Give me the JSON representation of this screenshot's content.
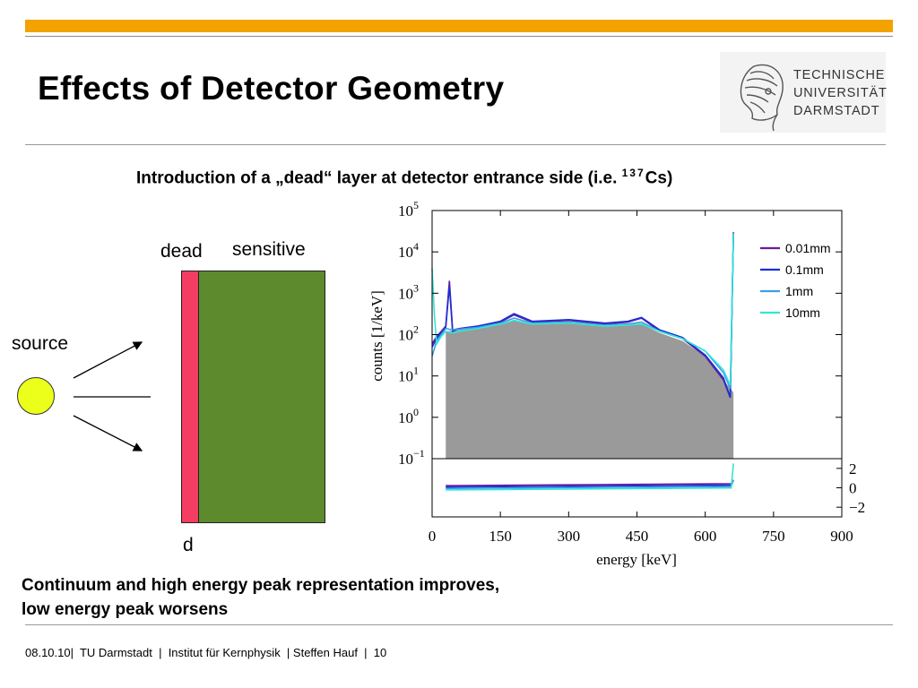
{
  "slide": {
    "title": "Effects of Detector Geometry",
    "subtitle_main": "Introduction of a „dead“ layer at detector entrance side (i.e. ",
    "subtitle_sup": "137",
    "subtitle_end": "Cs)",
    "conclusion_line1": "Continuum and high energy peak representation improves,",
    "conclusion_line2": "low energy peak worsens",
    "footer": "08.10.10|  TU Darmstadt  |  Institut für Kernphysik  | Steffen Hauf  |  10"
  },
  "logo": {
    "line1": "TECHNISCHE",
    "line2": "UNIVERSITÄT",
    "line3": "DARMSTADT"
  },
  "diagram": {
    "dead_label": "dead",
    "sensitive_label": "sensitive",
    "source_label": "source",
    "thickness_label": "d"
  },
  "colors": {
    "accent_bar": "#f2a300",
    "dead_layer": "#f53c62",
    "sensitive_layer": "#5c8a2d",
    "source": "#ecff1a"
  },
  "chart_data": {
    "type": "line",
    "title": "",
    "xlabel": "energy [keV]",
    "ylabel": "counts [1/keV]",
    "log_y": true,
    "xlim": [
      0,
      900
    ],
    "ylim": [
      0.1,
      100000
    ],
    "x_ticks": [
      0,
      150,
      300,
      450,
      600,
      750,
      900
    ],
    "y_ticks": [
      {
        "exp": -1,
        "label": "10",
        "sup": "−1"
      },
      {
        "exp": 0,
        "label": "10",
        "sup": "0"
      },
      {
        "exp": 1,
        "label": "10",
        "sup": "1"
      },
      {
        "exp": 2,
        "label": "10",
        "sup": "2"
      },
      {
        "exp": 3,
        "label": "10",
        "sup": "3"
      },
      {
        "exp": 4,
        "label": "10",
        "sup": "4"
      },
      {
        "exp": 5,
        "label": "10",
        "sup": "5"
      }
    ],
    "reference_fill": {
      "x": [
        30,
        60,
        100,
        150,
        180,
        220,
        300,
        380,
        430,
        460,
        500,
        550,
        600,
        640,
        662
      ],
      "y": [
        120,
        130,
        150,
        180,
        230,
        180,
        190,
        160,
        170,
        180,
        110,
        70,
        30,
        8,
        4
      ]
    },
    "series": [
      {
        "name": "0.01mm",
        "color": "#6a1b9a",
        "x": [
          0,
          10,
          20,
          30,
          38,
          45,
          60,
          100,
          150,
          180,
          220,
          300,
          380,
          430,
          460,
          500,
          550,
          600,
          640,
          655,
          662
        ],
        "y": [
          60,
          90,
          120,
          160,
          2000,
          130,
          140,
          160,
          200,
          300,
          200,
          220,
          180,
          200,
          250,
          120,
          80,
          30,
          8,
          3,
          30000
        ]
      },
      {
        "name": "0.1mm",
        "color": "#1a2fd6",
        "x": [
          0,
          10,
          20,
          30,
          38,
          45,
          60,
          100,
          150,
          180,
          220,
          300,
          380,
          430,
          460,
          500,
          550,
          600,
          640,
          655,
          662
        ],
        "y": [
          50,
          80,
          110,
          150,
          1500,
          120,
          140,
          160,
          210,
          320,
          210,
          230,
          190,
          210,
          260,
          130,
          85,
          32,
          9,
          3,
          28000
        ]
      },
      {
        "name": "1mm",
        "color": "#39a0e8",
        "x": [
          0,
          10,
          20,
          30,
          45,
          60,
          100,
          150,
          180,
          220,
          300,
          380,
          430,
          460,
          500,
          550,
          600,
          640,
          655,
          662
        ],
        "y": [
          30,
          70,
          100,
          140,
          130,
          135,
          150,
          190,
          250,
          190,
          200,
          170,
          180,
          200,
          120,
          80,
          40,
          12,
          5,
          29000
        ]
      },
      {
        "name": "10mm",
        "color": "#33e6d6",
        "x": [
          0,
          5,
          10,
          20,
          30,
          45,
          60,
          100,
          150,
          180,
          220,
          300,
          380,
          430,
          460,
          500,
          550,
          600,
          640,
          655,
          662
        ],
        "y": [
          4000,
          300,
          60,
          90,
          120,
          110,
          120,
          140,
          180,
          220,
          180,
          190,
          160,
          170,
          180,
          120,
          80,
          40,
          14,
          6,
          27000
        ]
      }
    ],
    "residual": {
      "ylim": [
        -3,
        3
      ],
      "y_ticks": [
        "2",
        "0",
        "−2"
      ]
    }
  }
}
